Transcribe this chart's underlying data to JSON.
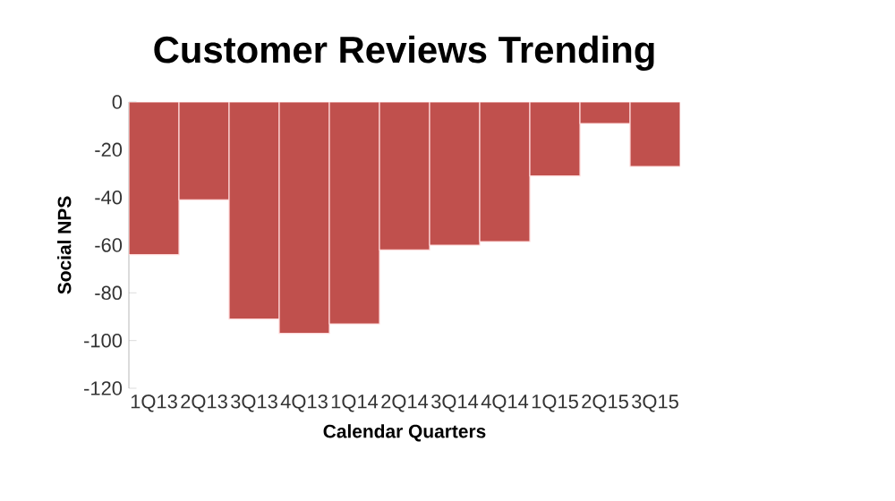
{
  "chart_data": {
    "type": "bar",
    "title": "Customer Reviews Trending",
    "xlabel": "Calendar Quarters",
    "ylabel": "Social NPS",
    "categories": [
      "1Q13",
      "2Q13",
      "3Q13",
      "4Q13",
      "1Q14",
      "2Q14",
      "3Q14",
      "4Q14",
      "1Q15",
      "2Q15",
      "3Q15"
    ],
    "values": [
      -64,
      -41,
      -91,
      -97,
      -93,
      -62,
      -60,
      -58.5,
      -31,
      -9,
      -27
    ],
    "color": "#c0504d",
    "ylim": [
      -120,
      0
    ],
    "yticks": [
      -120,
      -100,
      -80,
      -60,
      -40,
      -20,
      0
    ],
    "grid": false
  }
}
